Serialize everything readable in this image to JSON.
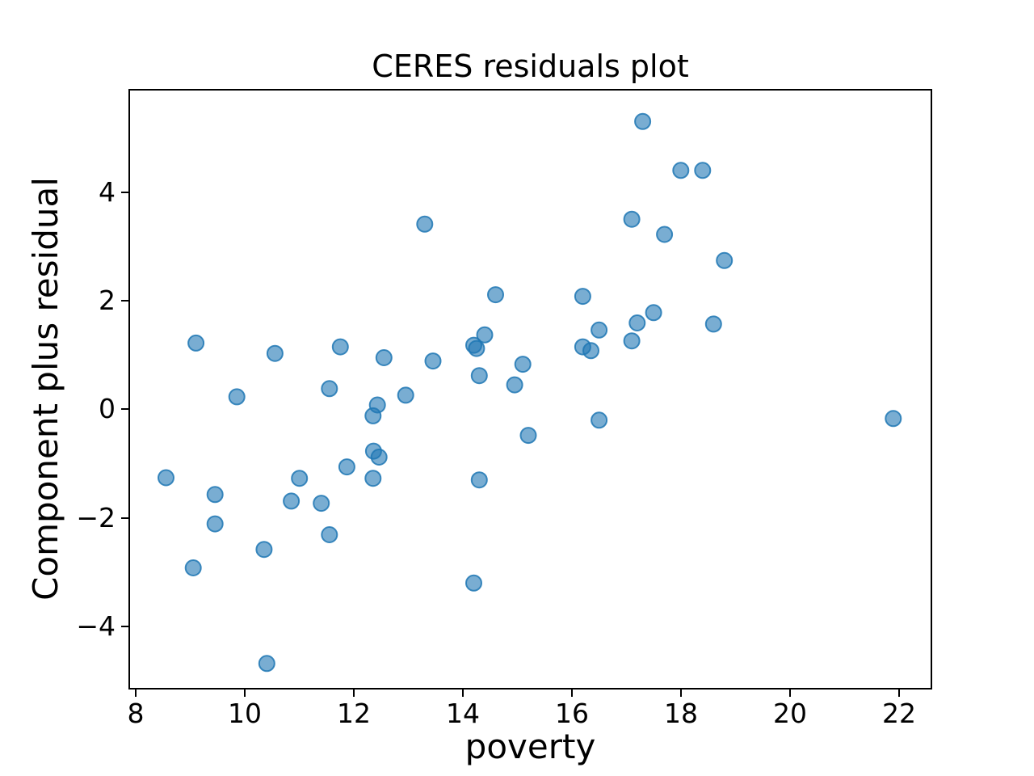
{
  "figure": {
    "background": "#ffffff"
  },
  "chart_data": {
    "type": "scatter",
    "title": "CERES residuals plot",
    "xlabel": "poverty",
    "ylabel": "Component plus residual",
    "xlim": [
      7.89,
      22.6
    ],
    "ylim": [
      -5.13,
      5.87
    ],
    "xticks": [
      8,
      10,
      12,
      14,
      16,
      18,
      20,
      22
    ],
    "yticks": [
      -4,
      -2,
      0,
      2,
      4
    ],
    "grid": false,
    "legend": null,
    "marker": {
      "shape": "circle",
      "radius": 9.5,
      "color": "#1f77b4",
      "fill_opacity": 0.6,
      "stroke_opacity": 0.85,
      "stroke_width": 2
    },
    "points": [
      [
        17.3,
        5.3
      ],
      [
        18.0,
        4.4
      ],
      [
        18.4,
        4.4
      ],
      [
        17.1,
        3.5
      ],
      [
        13.3,
        3.41
      ],
      [
        17.7,
        3.22
      ],
      [
        18.8,
        2.74
      ],
      [
        14.6,
        2.11
      ],
      [
        16.2,
        2.08
      ],
      [
        17.5,
        1.78
      ],
      [
        17.2,
        1.59
      ],
      [
        18.6,
        1.57
      ],
      [
        16.5,
        1.46
      ],
      [
        14.4,
        1.37
      ],
      [
        17.1,
        1.26
      ],
      [
        9.1,
        1.22
      ],
      [
        14.2,
        1.18
      ],
      [
        16.2,
        1.15
      ],
      [
        11.75,
        1.15
      ],
      [
        14.25,
        1.12
      ],
      [
        16.35,
        1.08
      ],
      [
        10.55,
        1.03
      ],
      [
        12.55,
        0.95
      ],
      [
        13.45,
        0.89
      ],
      [
        15.1,
        0.83
      ],
      [
        14.3,
        0.62
      ],
      [
        14.95,
        0.45
      ],
      [
        11.55,
        0.38
      ],
      [
        12.95,
        0.26
      ],
      [
        9.85,
        0.23
      ],
      [
        12.43,
        0.08
      ],
      [
        12.35,
        -0.12
      ],
      [
        21.9,
        -0.17
      ],
      [
        16.5,
        -0.2
      ],
      [
        15.2,
        -0.48
      ],
      [
        12.36,
        -0.77
      ],
      [
        12.46,
        -0.88
      ],
      [
        11.87,
        -1.06
      ],
      [
        8.55,
        -1.26
      ],
      [
        11.0,
        -1.27
      ],
      [
        12.35,
        -1.27
      ],
      [
        14.3,
        -1.3
      ],
      [
        9.45,
        -1.57
      ],
      [
        10.85,
        -1.69
      ],
      [
        11.4,
        -1.73
      ],
      [
        9.45,
        -2.11
      ],
      [
        11.55,
        -2.31
      ],
      [
        10.35,
        -2.58
      ],
      [
        9.05,
        -2.92
      ],
      [
        14.2,
        -3.2
      ],
      [
        10.4,
        -4.68
      ]
    ]
  }
}
